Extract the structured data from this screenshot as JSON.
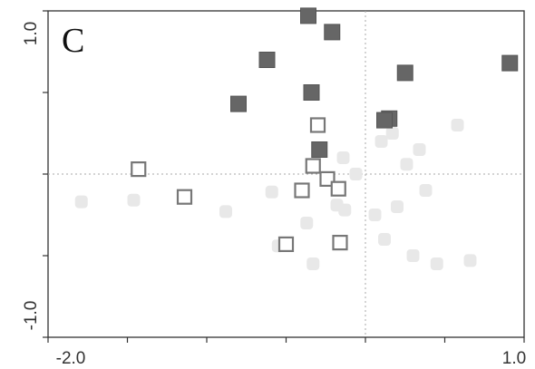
{
  "chart_data": {
    "type": "scatter",
    "panel_label": "C",
    "title": "",
    "xlabel": "",
    "ylabel": "",
    "xlim": [
      -2.0,
      1.0
    ],
    "ylim": [
      -1.0,
      1.0
    ],
    "x_tick_labels": [
      "-2.0",
      "1.0"
    ],
    "y_tick_labels": [
      "1.0",
      "-1.0"
    ],
    "zero_lines": "dotted",
    "legend": "none",
    "series": [
      {
        "marker": "filled-square",
        "color": "#666666",
        "points": [
          {
            "x": -0.36,
            "y": 0.97
          },
          {
            "x": -0.21,
            "y": 0.87
          },
          {
            "x": -0.62,
            "y": 0.7
          },
          {
            "x": -0.8,
            "y": 0.43
          },
          {
            "x": -0.34,
            "y": 0.5
          },
          {
            "x": 0.25,
            "y": 0.62
          },
          {
            "x": 0.91,
            "y": 0.68
          },
          {
            "x": 0.15,
            "y": 0.34
          },
          {
            "x": 0.12,
            "y": 0.33
          },
          {
            "x": -0.29,
            "y": 0.15
          }
        ]
      },
      {
        "marker": "open-square",
        "color": "#777777",
        "points": [
          {
            "x": -1.43,
            "y": 0.03
          },
          {
            "x": -1.14,
            "y": -0.14
          },
          {
            "x": -0.3,
            "y": 0.3
          },
          {
            "x": -0.33,
            "y": 0.05
          },
          {
            "x": -0.24,
            "y": -0.03
          },
          {
            "x": -0.4,
            "y": -0.1
          },
          {
            "x": -0.17,
            "y": -0.09
          },
          {
            "x": -0.5,
            "y": -0.43
          },
          {
            "x": -0.16,
            "y": -0.42
          }
        ]
      },
      {
        "marker": "faint-filled-square",
        "color": "#e8e8e8",
        "points": [
          {
            "x": -1.79,
            "y": -0.17
          },
          {
            "x": -1.46,
            "y": -0.16
          },
          {
            "x": -0.88,
            "y": -0.23
          },
          {
            "x": -0.59,
            "y": -0.11
          },
          {
            "x": -0.55,
            "y": -0.44
          },
          {
            "x": -0.37,
            "y": -0.3
          },
          {
            "x": -0.33,
            "y": -0.55
          },
          {
            "x": -0.18,
            "y": -0.19
          },
          {
            "x": -0.13,
            "y": -0.22
          },
          {
            "x": -0.06,
            "y": 0.0
          },
          {
            "x": -0.14,
            "y": 0.1
          },
          {
            "x": 0.06,
            "y": -0.25
          },
          {
            "x": 0.2,
            "y": -0.2
          },
          {
            "x": 0.26,
            "y": 0.06
          },
          {
            "x": 0.12,
            "y": -0.4
          },
          {
            "x": 0.3,
            "y": -0.5
          },
          {
            "x": 0.45,
            "y": -0.55
          },
          {
            "x": 0.66,
            "y": -0.53
          },
          {
            "x": 0.1,
            "y": 0.2
          },
          {
            "x": 0.17,
            "y": 0.25
          },
          {
            "x": 0.34,
            "y": 0.15
          },
          {
            "x": 0.58,
            "y": 0.3
          },
          {
            "x": 0.38,
            "y": -0.1
          }
        ]
      }
    ]
  }
}
